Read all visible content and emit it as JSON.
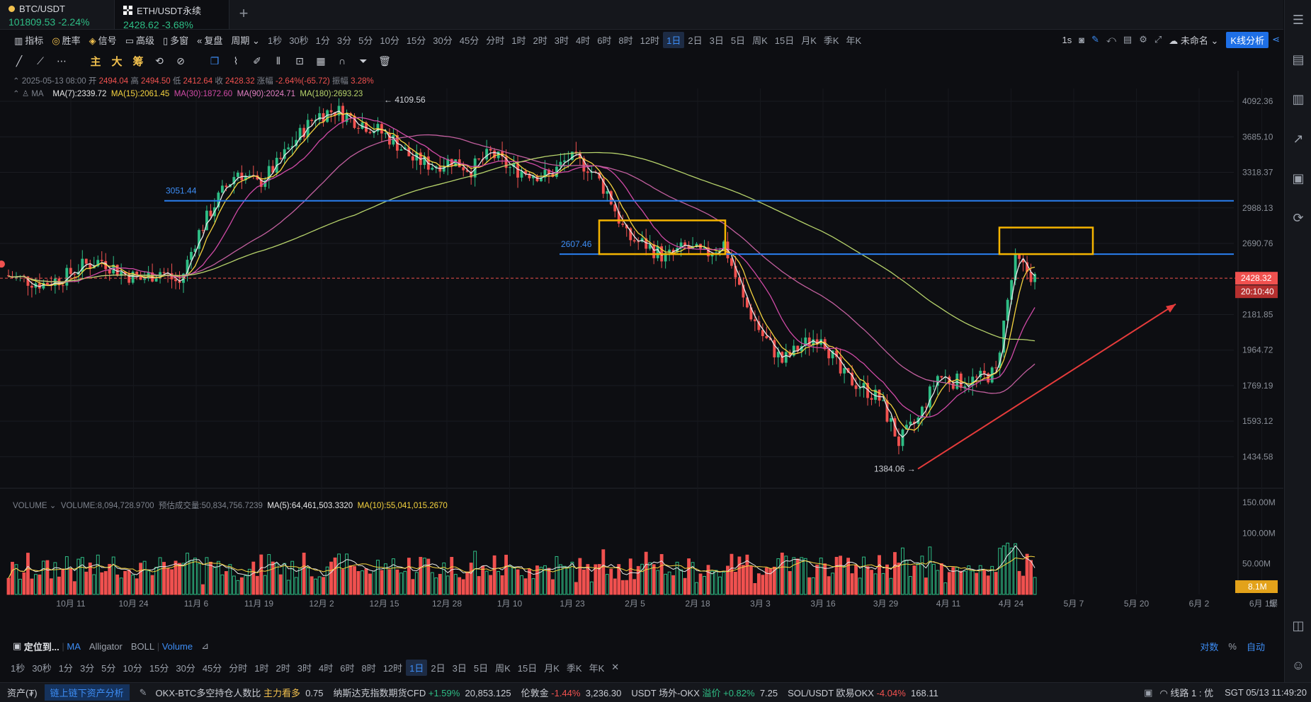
{
  "tabs": [
    {
      "symbol": "BTC/USDT",
      "price": "101809.53",
      "change": "-2.24%"
    },
    {
      "symbol": "ETH/USDT永续",
      "price": "2428.62",
      "change": "-3.68%"
    }
  ],
  "add_tab": "+",
  "toolbar": {
    "items": [
      "指标",
      "胜率",
      "信号",
      "高级",
      "多窗",
      "复盘",
      "周期"
    ],
    "timeframes": [
      "1秒",
      "30秒",
      "1分",
      "3分",
      "5分",
      "10分",
      "15分",
      "30分",
      "45分",
      "分时",
      "1时",
      "2时",
      "3时",
      "4时",
      "6时",
      "8时",
      "12时",
      "1日",
      "2日",
      "3日",
      "5日",
      "周K",
      "15日",
      "月K",
      "季K",
      "年K"
    ],
    "active_tf": "1日",
    "right_interval": "1s",
    "layout_name": "未命名",
    "kline_button": "K线分析"
  },
  "draw_toolbar": {
    "labels": [
      "主",
      "大",
      "筹"
    ]
  },
  "ohlc_line": {
    "date": "2025-05-13 08:00",
    "open_label": "开",
    "open": "2494.04",
    "high_label": "高",
    "high": "2494.50",
    "low_label": "低",
    "low": "2412.64",
    "close_label": "收",
    "close": "2428.32",
    "chg_label": "涨幅",
    "chg": "-2.64%(-65.72)",
    "amp_label": "振幅",
    "amp": "3.28%"
  },
  "ma_line": {
    "label": "MA",
    "ma7": "MA(7):2339.72",
    "ma15": "MA(15):2061.45",
    "ma30": "MA(30):1872.60",
    "ma90": "MA(90):2024.71",
    "ma180": "MA(180):2693.23"
  },
  "volume_line": {
    "label": "VOLUME",
    "volume": "VOLUME:8,094,728.9700",
    "est": "预估成交量:50,834,756.7239",
    "ma5": "MA(5):64,461,503.3320",
    "ma10": "MA(10):55,041,015.2670"
  },
  "colors": {
    "up": "#2ebd85",
    "down": "#f0514f",
    "ma7": "#e8e8e8",
    "ma15": "#f5d33f",
    "ma30": "#d04aa6",
    "ma90": "#c25f9e",
    "ma180": "#b7d36b",
    "hline": "#2a7ff0",
    "box": "#f5b400",
    "trend": "#e53b3b"
  },
  "bottom_bar": {
    "locate": "定位到...",
    "indicators": [
      "MA",
      "Alligator",
      "BOLL"
    ],
    "sub_indicator": "Volume",
    "right": [
      "对数",
      "%",
      "自动"
    ]
  },
  "bottom_tfs": [
    "1秒",
    "30秒",
    "1分",
    "3分",
    "5分",
    "10分",
    "15分",
    "30分",
    "45分",
    "分时",
    "1时",
    "2时",
    "3时",
    "4时",
    "6时",
    "8时",
    "12时",
    "1日",
    "2日",
    "3日",
    "5日",
    "周K",
    "15日",
    "月K",
    "季K",
    "年K"
  ],
  "ticker": {
    "assets": "资产(₮)",
    "onchain": "链上链下资产分析",
    "items": [
      {
        "name": "OKX-BTC多空持仓人数比",
        "tag": "主力看多",
        "value": "0.75"
      },
      {
        "name": "纳斯达克指数期货CFD",
        "tag": "+1.59%",
        "value": "20,853.125"
      },
      {
        "name": "伦敦金",
        "tag": "-1.44%",
        "value": "3,236.30"
      },
      {
        "name": "USDT 场外-OKX",
        "tag": "溢价 +0.82%",
        "value": "7.25"
      },
      {
        "name": "SOL/USDT 欧易OKX",
        "tag": "-4.04%",
        "value": "168.11"
      }
    ],
    "line": "线路 1 : 优",
    "time": "SGT  05/13 11:49:20"
  },
  "chart_data": {
    "type": "candlestick",
    "symbol": "ETH/USDT永续",
    "interval": "1日",
    "y_ticks": [
      4092.36,
      3685.1,
      3318.37,
      2988.13,
      2690.76,
      2181.85,
      1964.72,
      1769.19,
      1593.12,
      1434.58
    ],
    "y_range": [
      1280,
      4250
    ],
    "log_scale": true,
    "x_ticks": [
      "10月 11",
      "10月 24",
      "11月 6",
      "11月 19",
      "12月 2",
      "12月 15",
      "12月 28",
      "1月 10",
      "1月 23",
      "2月 5",
      "2月 18",
      "3月 3",
      "3月 16",
      "3月 29",
      "4月 11",
      "4月 24",
      "5月 7",
      "5月 20",
      "6月 2",
      "6月 15"
    ],
    "x_tail": "爆",
    "last_price": "2428.32",
    "countdown": "20:10:40",
    "annotations": {
      "high": "4109.56",
      "low": "1384.06",
      "level1": "3051.44",
      "level2": "2607.46"
    },
    "close_path": [
      2450,
      2420,
      2390,
      2430,
      2520,
      2560,
      2470,
      2420,
      2480,
      2390,
      2780,
      3080,
      3330,
      3200,
      3390,
      3660,
      3920,
      3990,
      3880,
      3780,
      3650,
      3450,
      3390,
      3440,
      3350,
      3510,
      3360,
      3320,
      3280,
      3460,
      3380,
      3130,
      2740,
      2680,
      2580,
      2660,
      2600,
      2690,
      2270,
      2050,
      1900,
      1990,
      2060,
      1830,
      1770,
      1700,
      1500,
      1600,
      1820,
      1790,
      1800,
      1840,
      2560,
      2428
    ],
    "volume_axis": {
      "ticks": [
        "150.00M",
        "100.00M",
        "50.00M"
      ],
      "last": "8.1M"
    }
  }
}
